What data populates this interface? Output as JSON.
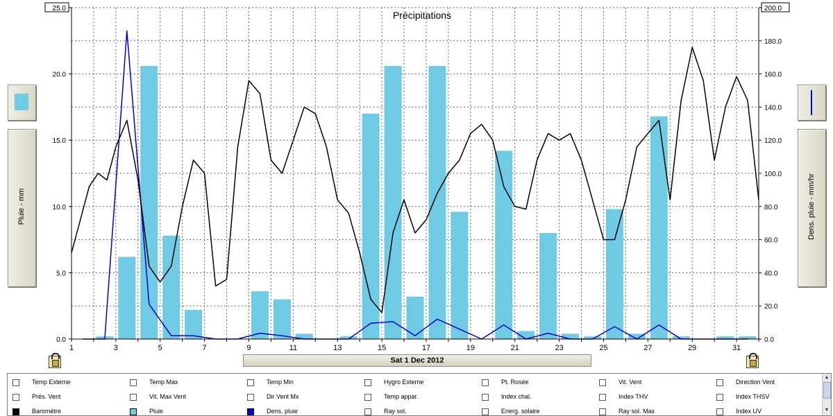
{
  "chart_data": {
    "type": "bar+line",
    "title": "Précipitations",
    "xlabel": "Sat 1 Dec 2012",
    "ylabel": "Pluie - mm",
    "y2label": "Dens. pluie - mm/hr",
    "xlim": [
      1,
      32
    ],
    "ylim": [
      0,
      25
    ],
    "y2lim": [
      0,
      200
    ],
    "x_ticks": [
      "1",
      "3",
      "5",
      "7",
      "9",
      "11",
      "13",
      "15",
      "17",
      "19",
      "21",
      "23",
      "25",
      "27",
      "29",
      "31"
    ],
    "y_ticks": [
      "0.0",
      "5.0",
      "10.0",
      "15.0",
      "20.0",
      "25.0"
    ],
    "y2_ticks": [
      "0.0",
      "20.0",
      "40.0",
      "60.0",
      "80.0",
      "100.0",
      "120.0",
      "140.0",
      "160.0",
      "180.0",
      "200.0"
    ],
    "grid": true,
    "series": [
      {
        "name": "Pluie",
        "kind": "bar",
        "axis": "left",
        "color": "#6fcae4",
        "x": [
          2.5,
          3.5,
          4.5,
          5.5,
          6.5,
          7.5,
          8.5,
          9.5,
          10.5,
          11.5,
          12.5,
          13.5,
          14.5,
          15.5,
          16.5,
          17.5,
          18.5,
          19.5,
          20.5,
          21.5,
          22.5,
          23.5,
          24.5,
          25.5,
          26.5,
          27.5,
          28.5,
          29.5,
          30.5,
          31.5
        ],
        "values": [
          0.2,
          6.2,
          20.6,
          7.8,
          2.2,
          0,
          0,
          3.6,
          3.0,
          0.4,
          0,
          0.2,
          17.0,
          20.6,
          3.2,
          20.6,
          9.6,
          0,
          14.2,
          0.6,
          8.0,
          0.4,
          0.2,
          9.8,
          0.4,
          16.8,
          0.2,
          0,
          0.2,
          0.2
        ]
      },
      {
        "name": "Dens. pluie",
        "kind": "line",
        "axis": "right",
        "color": "#0000cc",
        "x": [
          1.5,
          2.5,
          3.5,
          4.5,
          5.5,
          6.5,
          7.5,
          8.5,
          9.5,
          10.5,
          11.5,
          12.5,
          13.5,
          14.5,
          15.5,
          16.5,
          17.5,
          18.5,
          19.5,
          20.5,
          21.5,
          22.5,
          23.5,
          24.5,
          25.5,
          26.5,
          27.5,
          28.5,
          29.5,
          30.5,
          31.5
        ],
        "values": [
          0,
          0,
          186,
          21,
          2,
          2,
          0,
          0,
          3.5,
          2,
          0,
          0,
          0,
          9.5,
          10.5,
          2,
          12,
          6,
          0,
          8.5,
          0,
          3.5,
          0,
          0,
          7.5,
          0,
          8.5,
          0,
          0,
          0,
          0
        ]
      },
      {
        "name": "Temp Externe",
        "kind": "line",
        "axis": "left",
        "color": "#000000",
        "x": [
          1,
          1.4,
          1.8,
          2.2,
          2.6,
          3,
          3.5,
          4,
          4.5,
          5,
          5.5,
          6,
          6.5,
          7,
          7.5,
          8,
          8.5,
          9,
          9.5,
          10,
          10.5,
          11,
          11.5,
          12,
          12.5,
          13,
          13.5,
          14,
          14.5,
          15,
          15.5,
          16,
          16.5,
          17,
          17.5,
          18,
          18.5,
          19,
          19.5,
          20,
          20.5,
          21,
          21.5,
          22,
          22.5,
          23,
          23.5,
          24,
          24.5,
          25,
          25.5,
          26,
          26.5,
          27,
          27.5,
          28,
          28.5,
          29,
          29.5,
          30,
          30.5,
          31,
          31.5,
          32
        ],
        "values": [
          6.5,
          9,
          11.5,
          12.5,
          12,
          14.5,
          16.5,
          12,
          5.5,
          4.3,
          5.5,
          10,
          13.5,
          12.5,
          4,
          4.5,
          14.5,
          19.5,
          18.5,
          13.5,
          12.5,
          15,
          17.5,
          17,
          14.5,
          10.5,
          9.5,
          6.5,
          3,
          2,
          8,
          10.5,
          8,
          9,
          11,
          12.5,
          13.5,
          15.5,
          16.2,
          15,
          11.5,
          10,
          9.8,
          13.5,
          15.5,
          15,
          15.5,
          13.5,
          10.5,
          7.5,
          7.5,
          10.5,
          14.5,
          15.5,
          16.5,
          10.5,
          18,
          22,
          19.5,
          13.5,
          17.5,
          19.8,
          18,
          10.5
        ]
      }
    ]
  },
  "labels": {
    "ylabel_panel": "Pluie - mm",
    "y2label_panel": "Dens. pluie - mm/hr",
    "date": "Sat 1 Dec 2012"
  },
  "legend": {
    "rows": [
      [
        "Temp Externe",
        "Temp Max",
        "Temp Min",
        "Hygro Externe",
        "Pt. Rosée",
        "Vit. Vent",
        "Direction Vent"
      ],
      [
        "Prés. Vent",
        "Vit. Max Vent",
        "Dir Vent Mx",
        "Temp appar.",
        "Index chal.",
        "Index THV",
        "Index THSV"
      ],
      [
        "Baromètre",
        "Pluie",
        "Dens. pluie",
        "Ray sol.",
        "Energ. solaire",
        "Ray sol. Max",
        "Index UV"
      ]
    ],
    "swatches": {
      "Baromètre": "#000000",
      "Pluie": "#6fcae4",
      "Dens. pluie": "#0000cc"
    }
  }
}
